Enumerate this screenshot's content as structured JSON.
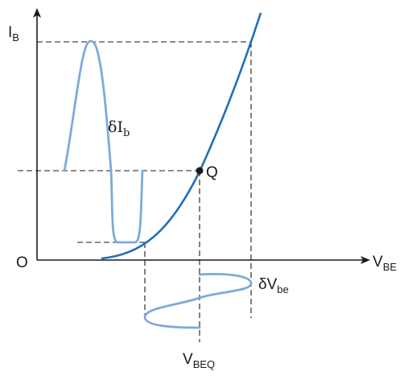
{
  "axes": {
    "x_label": "V",
    "x_label_sub": "BE",
    "y_label": "I",
    "y_label_sub": "B",
    "origin_label": "O"
  },
  "operating_point": {
    "label": "Q",
    "v_label": "V",
    "v_label_sub": "BEQ"
  },
  "signals": {
    "input_label": "δV",
    "input_label_sub": "be",
    "output_label": "δI",
    "output_label_sub": "b"
  },
  "colors": {
    "characteristic_curve": "#1f6fb8",
    "signal_waveforms": "#7eaad9",
    "axes": "#1a1a1a"
  }
}
